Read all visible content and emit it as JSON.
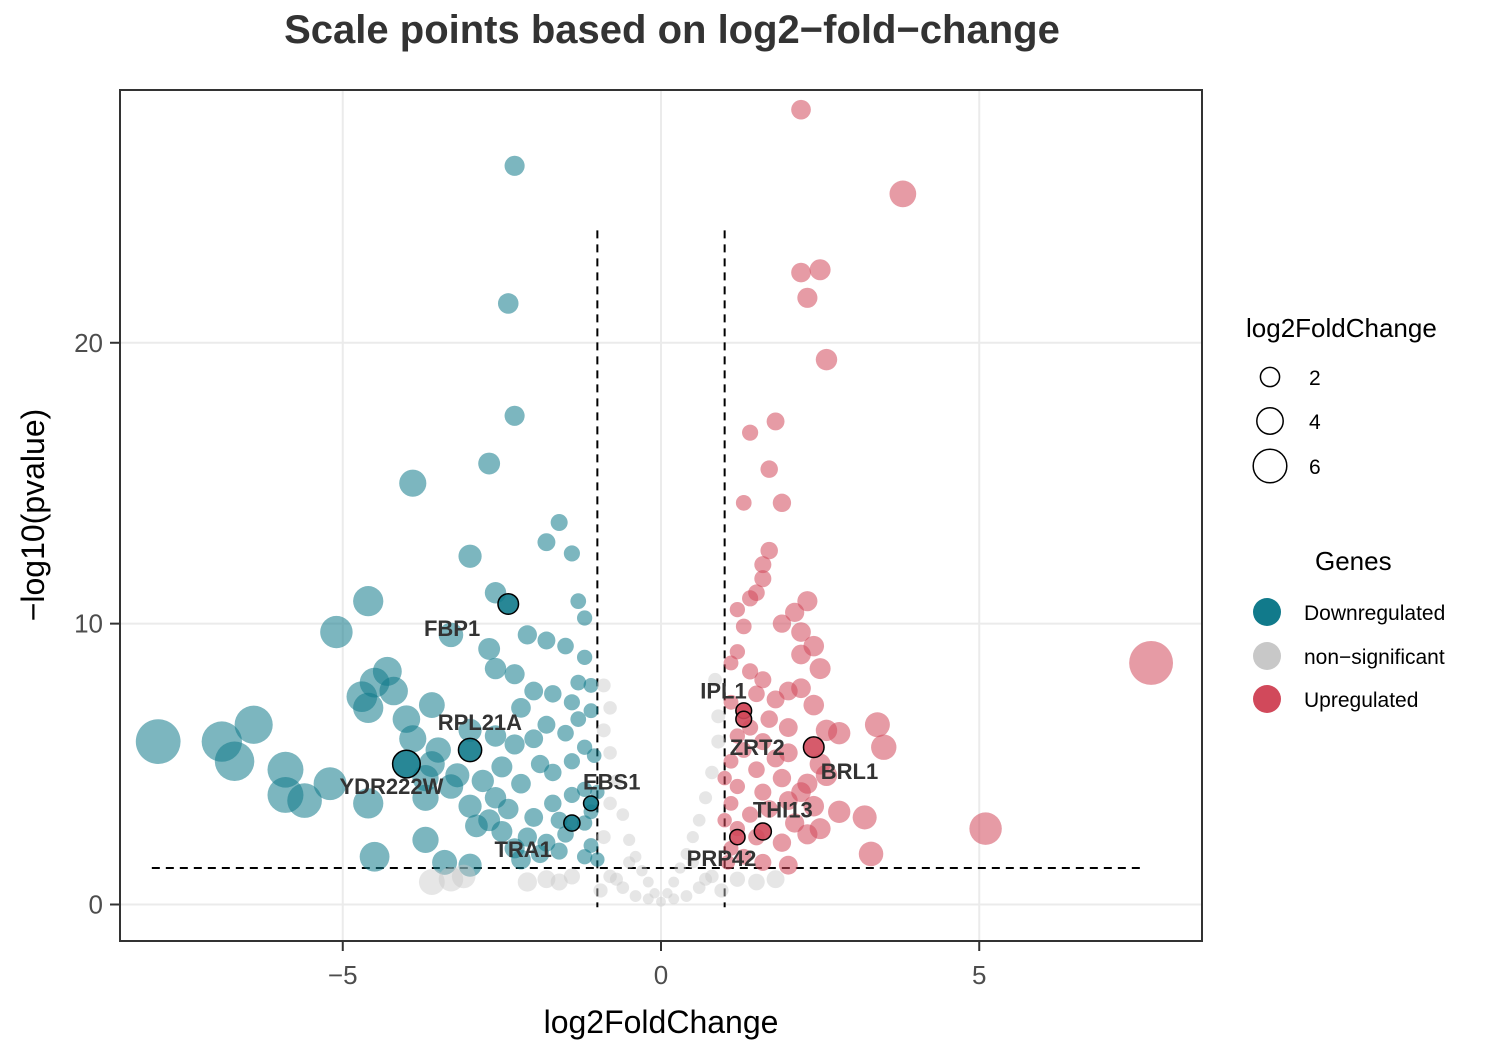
{
  "chart_data": {
    "type": "scatter",
    "title": "Scale points based on log2−fold−change",
    "xlabel": "log2FoldChange",
    "ylabel": "−log10(pvalue)",
    "xlim": [
      -8.5,
      8.5
    ],
    "ylim": [
      -1.3,
      29.0
    ],
    "x_ticks": [
      -5,
      0,
      5
    ],
    "x_tick_labels": [
      "−5",
      "0",
      "5"
    ],
    "y_ticks": [
      0,
      10,
      20
    ],
    "y_tick_labels": [
      "0",
      "10",
      "20"
    ],
    "grid": true,
    "thresholds": {
      "log2fc": [
        -1,
        1
      ],
      "neg_log10_p": 1.3
    },
    "colors": {
      "Downregulated": "#117a8b",
      "non-significant": "#c8c8c8",
      "Upregulated": "#d1495b"
    },
    "legend_size": {
      "title": "log2FoldChange",
      "entries": [
        {
          "label": "2",
          "value": 2
        },
        {
          "label": "4",
          "value": 4
        },
        {
          "label": "6",
          "value": 6
        }
      ]
    },
    "legend_color": {
      "title": "Genes",
      "entries": [
        {
          "label": "Downregulated",
          "color": "#117a8b"
        },
        {
          "label": "non−significant",
          "color": "#c8c8c8"
        },
        {
          "label": "Upregulated",
          "color": "#d1495b"
        }
      ]
    },
    "series": [
      {
        "name": "Downregulated",
        "points": [
          [
            -2.3,
            26.3
          ],
          [
            -2.4,
            21.4
          ],
          [
            -2.3,
            17.4
          ],
          [
            -2.7,
            15.7
          ],
          [
            -3.9,
            15.0
          ],
          [
            -3.0,
            12.4
          ],
          [
            -1.6,
            13.6
          ],
          [
            -1.8,
            12.9
          ],
          [
            -1.4,
            12.5
          ],
          [
            -4.6,
            10.8
          ],
          [
            -2.6,
            11.1
          ],
          [
            -5.1,
            9.7
          ],
          [
            -3.3,
            9.6
          ],
          [
            -1.3,
            10.8
          ],
          [
            -1.2,
            10.2
          ],
          [
            -2.7,
            9.1
          ],
          [
            -2.1,
            9.6
          ],
          [
            -1.8,
            9.4
          ],
          [
            -1.5,
            9.2
          ],
          [
            -1.2,
            8.8
          ],
          [
            -2.3,
            8.2
          ],
          [
            -2.6,
            8.4
          ],
          [
            -4.3,
            8.3
          ],
          [
            -4.5,
            7.9
          ],
          [
            -4.2,
            7.6
          ],
          [
            -4.7,
            7.4
          ],
          [
            -3.6,
            7.1
          ],
          [
            -4.0,
            6.6
          ],
          [
            -4.6,
            7.0
          ],
          [
            -2.0,
            7.6
          ],
          [
            -1.7,
            7.5
          ],
          [
            -1.4,
            7.2
          ],
          [
            -1.3,
            7.9
          ],
          [
            -1.1,
            7.8
          ],
          [
            -2.2,
            7.0
          ],
          [
            -7.9,
            5.8
          ],
          [
            -6.9,
            5.8
          ],
          [
            -6.4,
            6.4
          ],
          [
            -6.7,
            5.1
          ],
          [
            -5.9,
            4.8
          ],
          [
            -5.9,
            3.9
          ],
          [
            -5.6,
            3.7
          ],
          [
            -5.2,
            4.3
          ],
          [
            -4.6,
            3.6
          ],
          [
            -3.7,
            4.5
          ],
          [
            -3.6,
            5.0
          ],
          [
            -3.2,
            4.6
          ],
          [
            -3.7,
            3.8
          ],
          [
            -3.3,
            4.2
          ],
          [
            -3.9,
            5.9
          ],
          [
            -3.5,
            5.5
          ],
          [
            -3.0,
            6.2
          ],
          [
            -2.6,
            6.0
          ],
          [
            -2.3,
            5.7
          ],
          [
            -2.0,
            5.9
          ],
          [
            -1.8,
            6.4
          ],
          [
            -1.5,
            6.1
          ],
          [
            -1.3,
            6.6
          ],
          [
            -1.1,
            6.9
          ],
          [
            -1.9,
            5.0
          ],
          [
            -2.5,
            4.9
          ],
          [
            -2.8,
            4.4
          ],
          [
            -2.2,
            4.3
          ],
          [
            -1.7,
            4.7
          ],
          [
            -1.4,
            5.1
          ],
          [
            -1.2,
            5.6
          ],
          [
            -3.0,
            3.5
          ],
          [
            -2.7,
            3.0
          ],
          [
            -2.4,
            3.4
          ],
          [
            -2.0,
            3.1
          ],
          [
            -1.7,
            3.6
          ],
          [
            -1.4,
            3.9
          ],
          [
            -1.2,
            4.1
          ],
          [
            -2.9,
            2.8
          ],
          [
            -2.5,
            2.6
          ],
          [
            -2.1,
            2.4
          ],
          [
            -1.8,
            2.2
          ],
          [
            -1.5,
            2.5
          ],
          [
            -1.2,
            2.9
          ],
          [
            -1.1,
            3.3
          ],
          [
            -2.3,
            2.0
          ],
          [
            -1.9,
            1.8
          ],
          [
            -1.6,
            1.9
          ],
          [
            -1.2,
            1.7
          ],
          [
            -1.1,
            2.1
          ],
          [
            -3.7,
            2.3
          ],
          [
            -4.5,
            1.7
          ],
          [
            -3.4,
            1.5
          ],
          [
            -3.0,
            1.4
          ],
          [
            -2.2,
            1.6
          ],
          [
            -1.0,
            1.6
          ],
          [
            -1.0,
            4.0
          ],
          [
            -1.05,
            5.3
          ],
          [
            -1.6,
            3.0
          ],
          [
            -2.6,
            3.8
          ]
        ]
      },
      {
        "name": "non-significant",
        "points": [
          [
            -0.9,
            2.4
          ],
          [
            -0.8,
            3.6
          ],
          [
            -0.7,
            4.4
          ],
          [
            -0.8,
            5.4
          ],
          [
            -0.9,
            6.2
          ],
          [
            -0.9,
            7.8
          ],
          [
            -0.8,
            7.0
          ],
          [
            -0.6,
            3.2
          ],
          [
            -0.5,
            2.3
          ],
          [
            -0.4,
            1.7
          ],
          [
            -0.3,
            1.2
          ],
          [
            -0.2,
            0.8
          ],
          [
            -0.1,
            0.4
          ],
          [
            0.0,
            0.1
          ],
          [
            0.1,
            0.4
          ],
          [
            0.2,
            0.8
          ],
          [
            0.3,
            1.3
          ],
          [
            0.4,
            1.8
          ],
          [
            0.5,
            2.4
          ],
          [
            0.6,
            3.0
          ],
          [
            0.7,
            3.8
          ],
          [
            0.8,
            4.7
          ],
          [
            0.9,
            5.8
          ],
          [
            0.9,
            6.7
          ],
          [
            0.85,
            8.0
          ],
          [
            -0.6,
            0.6
          ],
          [
            -0.4,
            0.3
          ],
          [
            -0.2,
            0.2
          ],
          [
            0.2,
            0.2
          ],
          [
            0.4,
            0.3
          ],
          [
            0.6,
            0.6
          ],
          [
            -0.8,
            1.0
          ],
          [
            0.8,
            1.0
          ],
          [
            -0.95,
            0.5
          ],
          [
            0.95,
            0.5
          ],
          [
            -1.4,
            1.0
          ],
          [
            -1.8,
            0.9
          ],
          [
            -2.1,
            0.8
          ],
          [
            -3.3,
            0.9
          ],
          [
            -3.6,
            0.8
          ],
          [
            -3.1,
            1.0
          ],
          [
            -1.6,
            0.8
          ],
          [
            1.2,
            0.9
          ],
          [
            1.5,
            0.8
          ],
          [
            1.8,
            0.9
          ],
          [
            -0.7,
            0.9
          ],
          [
            0.7,
            0.9
          ],
          [
            -0.5,
            1.5
          ],
          [
            0.5,
            1.5
          ]
        ]
      },
      {
        "name": "Upregulated",
        "points": [
          [
            2.2,
            28.3
          ],
          [
            3.8,
            25.3
          ],
          [
            2.2,
            22.5
          ],
          [
            2.5,
            22.6
          ],
          [
            2.3,
            21.6
          ],
          [
            2.6,
            19.4
          ],
          [
            1.4,
            16.8
          ],
          [
            1.8,
            17.2
          ],
          [
            1.7,
            15.5
          ],
          [
            1.3,
            14.3
          ],
          [
            1.9,
            14.3
          ],
          [
            1.7,
            12.6
          ],
          [
            1.6,
            12.1
          ],
          [
            1.6,
            11.6
          ],
          [
            1.5,
            11.1
          ],
          [
            1.4,
            10.9
          ],
          [
            2.3,
            10.8
          ],
          [
            2.1,
            10.4
          ],
          [
            1.9,
            10.0
          ],
          [
            1.2,
            10.5
          ],
          [
            1.3,
            9.9
          ],
          [
            2.2,
            9.7
          ],
          [
            2.4,
            9.2
          ],
          [
            2.2,
            8.9
          ],
          [
            2.5,
            8.4
          ],
          [
            1.2,
            9.0
          ],
          [
            1.1,
            8.6
          ],
          [
            1.4,
            8.3
          ],
          [
            1.6,
            8.0
          ],
          [
            7.7,
            8.6
          ],
          [
            1.5,
            7.5
          ],
          [
            1.8,
            7.3
          ],
          [
            2.0,
            7.6
          ],
          [
            2.2,
            7.7
          ],
          [
            2.4,
            7.1
          ],
          [
            1.1,
            7.2
          ],
          [
            1.3,
            6.9
          ],
          [
            1.7,
            6.6
          ],
          [
            2.0,
            6.3
          ],
          [
            2.6,
            6.2
          ],
          [
            2.8,
            6.1
          ],
          [
            3.4,
            6.4
          ],
          [
            3.5,
            5.6
          ],
          [
            1.2,
            6.0
          ],
          [
            1.6,
            5.8
          ],
          [
            2.0,
            5.4
          ],
          [
            2.5,
            5.0
          ],
          [
            1.1,
            5.1
          ],
          [
            1.5,
            4.8
          ],
          [
            1.9,
            4.5
          ],
          [
            2.3,
            4.3
          ],
          [
            2.6,
            4.6
          ],
          [
            1.2,
            4.2
          ],
          [
            1.6,
            4.0
          ],
          [
            2.0,
            3.7
          ],
          [
            2.4,
            3.5
          ],
          [
            2.8,
            3.3
          ],
          [
            3.2,
            3.1
          ],
          [
            1.1,
            3.6
          ],
          [
            1.4,
            3.2
          ],
          [
            1.7,
            3.4
          ],
          [
            2.1,
            2.9
          ],
          [
            2.5,
            2.7
          ],
          [
            1.2,
            2.7
          ],
          [
            1.5,
            2.4
          ],
          [
            1.9,
            2.2
          ],
          [
            2.3,
            2.5
          ],
          [
            5.1,
            2.7
          ],
          [
            3.3,
            1.8
          ],
          [
            1.1,
            2.0
          ],
          [
            1.3,
            1.7
          ],
          [
            1.6,
            1.5
          ],
          [
            2.0,
            1.4
          ],
          [
            1.05,
            1.5
          ],
          [
            1.4,
            6.3
          ],
          [
            1.8,
            5.2
          ],
          [
            2.2,
            4.0
          ],
          [
            1.0,
            4.5
          ],
          [
            1.0,
            3.0
          ],
          [
            1.3,
            5.5
          ]
        ]
      }
    ],
    "highlighted_genes": [
      {
        "label": "FBP1",
        "x": -2.4,
        "y": 10.7,
        "group": "Downregulated"
      },
      {
        "label": "RPL21A",
        "x": -3.0,
        "y": 5.5,
        "group": "Downregulated"
      },
      {
        "label": "YDR222W",
        "x": -4.0,
        "y": 5.0,
        "group": "Downregulated"
      },
      {
        "label": "EBS1",
        "x": -1.1,
        "y": 3.6,
        "group": "Downregulated"
      },
      {
        "label": "TRA1",
        "x": -1.4,
        "y": 2.9,
        "group": "Downregulated"
      },
      {
        "label": "IPL1",
        "x": 1.3,
        "y": 6.9,
        "group": "Upregulated"
      },
      {
        "label": "ZRT2",
        "x": 1.3,
        "y": 6.6,
        "group": "Upregulated"
      },
      {
        "label": "BRL1",
        "x": 2.4,
        "y": 5.6,
        "group": "Upregulated"
      },
      {
        "label": "THI13",
        "x": 1.6,
        "y": 2.6,
        "group": "Upregulated"
      },
      {
        "label": "PRP42",
        "x": 1.2,
        "y": 2.4,
        "group": "Upregulated"
      }
    ]
  }
}
